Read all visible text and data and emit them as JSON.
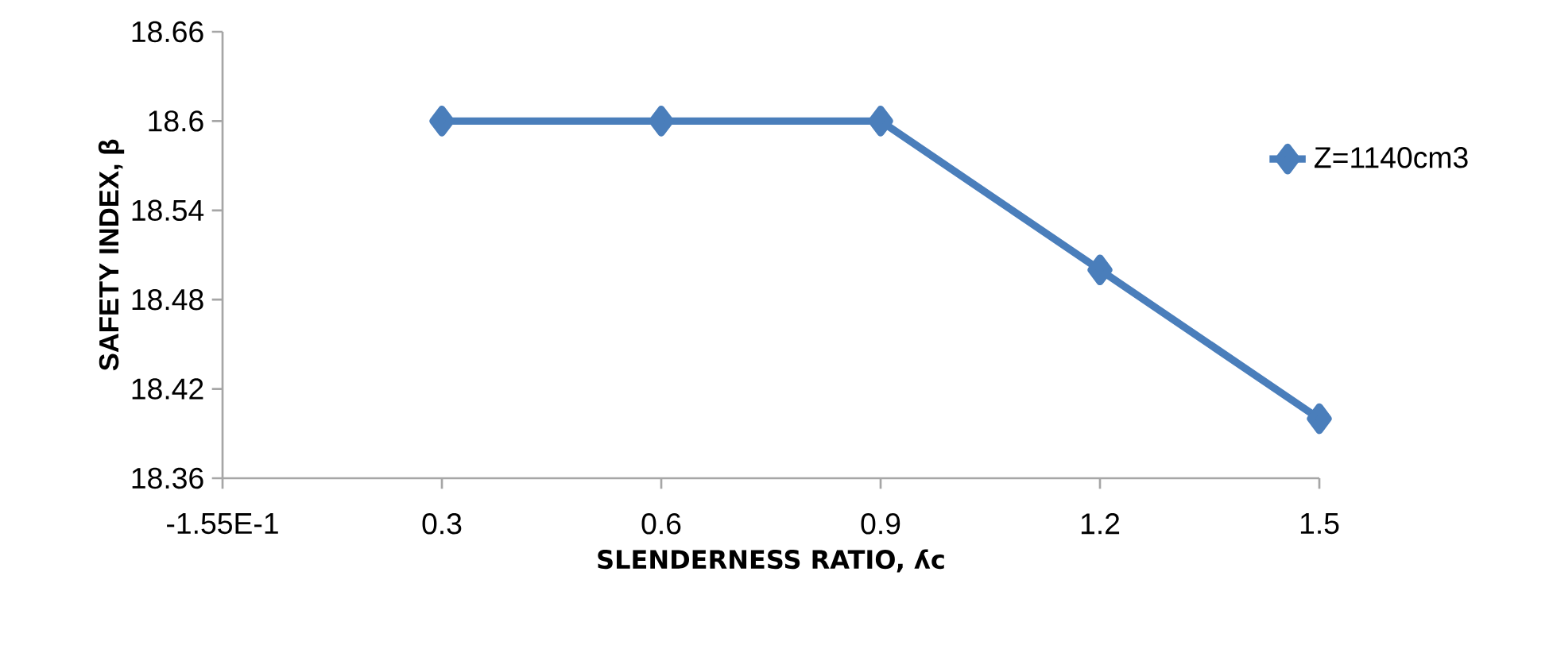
{
  "chart_data": {
    "type": "line",
    "xlabel": "SLENDERNESS RATIO, ʎc",
    "ylabel": "SAFETY  INDEX, β",
    "categories": [
      "-1.55E-1",
      "0.3",
      "0.6",
      "0.9",
      "1.2",
      "1.5"
    ],
    "series": [
      {
        "name": "Z=1140cm3",
        "color": "#4a7ebb",
        "values": [
          null,
          18.6,
          18.6,
          18.6,
          18.5,
          18.4
        ]
      }
    ],
    "ylim": [
      18.36,
      18.66
    ],
    "yticks": [
      18.36,
      18.42,
      18.48,
      18.54,
      18.6,
      18.66
    ],
    "legend": "right",
    "marker": "diamond",
    "line_style": "solid"
  }
}
